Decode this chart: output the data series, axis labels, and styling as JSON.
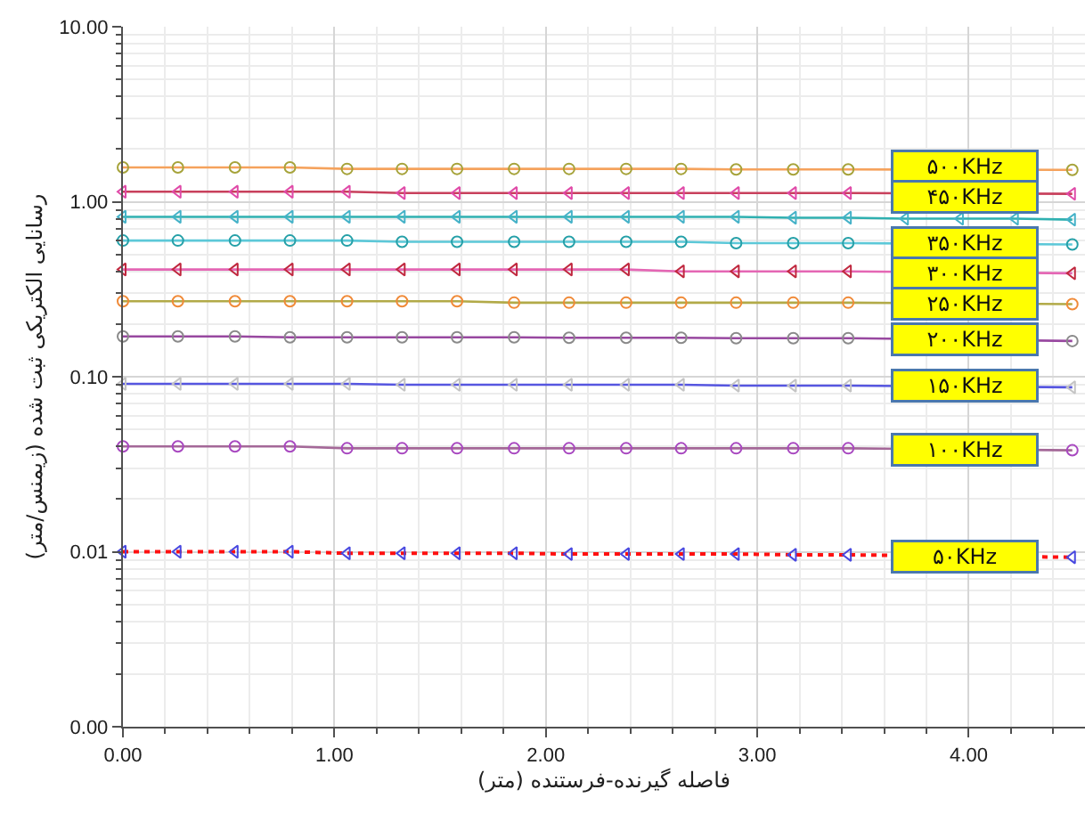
{
  "chart_data": {
    "type": "line",
    "xlabel": "فاصله گیرنده-فرستنده (متر)",
    "ylabel": "رسانایی الکتریکی ثبت شده (زیمنس/متر)",
    "log": true,
    "grid": true,
    "xlim": [
      0,
      4.55
    ],
    "xticks": [
      {
        "value": 0,
        "label": "0.00"
      },
      {
        "value": 1,
        "label": "1.00"
      },
      {
        "value": 2,
        "label": "2.00"
      },
      {
        "value": 3,
        "label": "3.00"
      },
      {
        "value": 4,
        "label": "4.00"
      },
      {
        "value": 0.2,
        "label": null
      },
      {
        "value": 0.4,
        "label": null
      },
      {
        "value": 0.6,
        "label": null
      },
      {
        "value": 0.8,
        "label": null
      },
      {
        "value": 1.2,
        "label": null
      },
      {
        "value": 1.4,
        "label": null
      },
      {
        "value": 1.6,
        "label": null
      },
      {
        "value": 1.8,
        "label": null
      },
      {
        "value": 2.2,
        "label": null
      },
      {
        "value": 2.4,
        "label": null
      },
      {
        "value": 2.6,
        "label": null
      },
      {
        "value": 2.8,
        "label": null
      },
      {
        "value": 3.2,
        "label": null
      },
      {
        "value": 3.4,
        "label": null
      },
      {
        "value": 3.6,
        "label": null
      },
      {
        "value": 3.8,
        "label": null
      },
      {
        "value": 4.2,
        "label": null
      },
      {
        "value": 4.4,
        "label": null
      }
    ],
    "ylim": [
      0.001,
      10
    ],
    "yticks": [
      {
        "value": 0.001,
        "label": "0.00"
      },
      {
        "value": 0.01,
        "label": "0.01"
      },
      {
        "value": 0.1,
        "label": "0.10"
      },
      {
        "value": 1,
        "label": "1.00"
      },
      {
        "value": 10,
        "label": "10.00"
      },
      {
        "value": 0.002,
        "label": null
      },
      {
        "value": 0.003,
        "label": null
      },
      {
        "value": 0.004,
        "label": null
      },
      {
        "value": 0.005,
        "label": null
      },
      {
        "value": 0.006,
        "label": null
      },
      {
        "value": 0.007,
        "label": null
      },
      {
        "value": 0.008,
        "label": null
      },
      {
        "value": 0.009,
        "label": null
      },
      {
        "value": 0.02,
        "label": null
      },
      {
        "value": 0.03,
        "label": null
      },
      {
        "value": 0.04,
        "label": null
      },
      {
        "value": 0.05,
        "label": null
      },
      {
        "value": 0.06,
        "label": null
      },
      {
        "value": 0.07,
        "label": null
      },
      {
        "value": 0.08,
        "label": null
      },
      {
        "value": 0.09,
        "label": null
      },
      {
        "value": 0.2,
        "label": null
      },
      {
        "value": 0.3,
        "label": null
      },
      {
        "value": 0.4,
        "label": null
      },
      {
        "value": 0.5,
        "label": null
      },
      {
        "value": 0.6,
        "label": null
      },
      {
        "value": 0.7,
        "label": null
      },
      {
        "value": 0.8,
        "label": null
      },
      {
        "value": 0.9,
        "label": null
      },
      {
        "value": 2,
        "label": null
      },
      {
        "value": 3,
        "label": null
      },
      {
        "value": 4,
        "label": null
      },
      {
        "value": 5,
        "label": null
      },
      {
        "value": 6,
        "label": null
      },
      {
        "value": 7,
        "label": null
      },
      {
        "value": 8,
        "label": null
      },
      {
        "value": 9,
        "label": null
      }
    ],
    "x": [
      0,
      0.26,
      0.53,
      0.79,
      1.06,
      1.32,
      1.58,
      1.85,
      2.11,
      2.38,
      2.64,
      2.9,
      3.17,
      3.43,
      4.49
    ],
    "series": [
      {
        "name": "۵۰۰KHz",
        "color": "#f5a25c",
        "colors": [
          "#a6a33a",
          "#a6a33a",
          "#a6a33a",
          "#a6a33a",
          "#a6a33a",
          "#a6a33a",
          "#a6a33a",
          "#a6a33a",
          "#a6a33a",
          "#a6a33a",
          "#a6a33a",
          "#a6a33a",
          "#a6a33a",
          "#a6a33a",
          "#a6a33a"
        ],
        "marker": "circle",
        "line_style": "solid",
        "values": [
          1.57,
          1.57,
          1.57,
          1.57,
          1.54,
          1.54,
          1.54,
          1.54,
          1.54,
          1.54,
          1.54,
          1.53,
          1.53,
          1.53,
          1.52
        ]
      },
      {
        "name": "۴۵۰KHz",
        "color": "#c8405c",
        "colors": [
          "#e04aa8",
          "#e04aa8",
          "#e04aa8",
          "#e04aa8",
          "#e04aa8",
          "#e04aa8",
          "#e04aa8",
          "#e04aa8",
          "#e04aa8",
          "#e04aa8",
          "#e04aa8",
          "#e04aa8",
          "#e04aa8",
          "#e04aa8",
          "#e04aa8"
        ],
        "marker": "triangle",
        "line_style": "solid",
        "values": [
          1.14,
          1.14,
          1.14,
          1.14,
          1.14,
          1.12,
          1.12,
          1.12,
          1.12,
          1.12,
          1.12,
          1.12,
          1.12,
          1.12,
          1.11
        ]
      },
      {
        "color": "#2fb0b0",
        "colors": [
          "#45b2c8",
          "#45b2c8",
          "#45b2c8",
          "#45b2c8",
          "#45b2c8",
          "#45b2c8",
          "#45b2c8",
          "#45b2c8",
          "#45b2c8",
          "#45b2c8",
          "#45b2c8",
          "#45b2c8",
          "#45b2c8",
          "#45b2c8",
          "#45b2c8",
          "#45b2c8",
          "#45b2c8",
          "#45b2c8"
        ],
        "marker": "triangle",
        "line_style": "solid",
        "x": [
          0,
          0.26,
          0.53,
          0.79,
          1.06,
          1.32,
          1.58,
          1.85,
          2.11,
          2.38,
          2.64,
          2.9,
          3.17,
          3.43,
          3.7,
          3.96,
          4.22,
          4.49
        ],
        "values": [
          0.82,
          0.82,
          0.82,
          0.82,
          0.82,
          0.82,
          0.82,
          0.82,
          0.82,
          0.82,
          0.82,
          0.82,
          0.81,
          0.81,
          0.8,
          0.8,
          0.8,
          0.79
        ]
      },
      {
        "name": "۳۵۰KHz",
        "color": "#5cc8d8",
        "colors": [
          "#25a0a8",
          "#25a0a8",
          "#25a0a8",
          "#25a0a8",
          "#25a0a8",
          "#25a0a8",
          "#25a0a8",
          "#25a0a8",
          "#25a0a8",
          "#25a0a8",
          "#25a0a8",
          "#25a0a8",
          "#25a0a8",
          "#25a0a8",
          "#25a0a8"
        ],
        "marker": "circle",
        "line_style": "solid",
        "values": [
          0.6,
          0.6,
          0.6,
          0.6,
          0.6,
          0.59,
          0.59,
          0.59,
          0.59,
          0.59,
          0.59,
          0.58,
          0.58,
          0.58,
          0.57
        ]
      },
      {
        "name": "۳۰۰KHz",
        "color": "#e466b4",
        "colors": [
          "#c0283f",
          "#c0283f",
          "#c0283f",
          "#c0283f",
          "#c0283f",
          "#c0283f",
          "#c0283f",
          "#c0283f",
          "#c0283f",
          "#c0283f",
          "#c0283f",
          "#c0283f",
          "#c0283f",
          "#c0283f",
          "#c0283f"
        ],
        "marker": "triangle",
        "line_style": "solid",
        "values": [
          0.41,
          0.41,
          0.41,
          0.41,
          0.41,
          0.41,
          0.41,
          0.41,
          0.41,
          0.41,
          0.4,
          0.4,
          0.4,
          0.4,
          0.39
        ]
      },
      {
        "name": "۲۵۰KHz",
        "color": "#b2aa48",
        "colors": [
          "#f08a38",
          "#f08a38",
          "#f08a38",
          "#f08a38",
          "#f08a38",
          "#f08a38",
          "#f08a38",
          "#f08a38",
          "#f08a38",
          "#f08a38",
          "#f08a38",
          "#f08a38",
          "#f08a38",
          "#f08a38",
          "#f08a38"
        ],
        "marker": "circle",
        "line_style": "solid",
        "values": [
          0.27,
          0.27,
          0.27,
          0.27,
          0.27,
          0.27,
          0.27,
          0.265,
          0.265,
          0.265,
          0.265,
          0.265,
          0.265,
          0.265,
          0.26
        ]
      },
      {
        "name": "۲۰۰KHz",
        "color": "#9848a0",
        "colors": [
          "#8a8a8a",
          "#8a8a8a",
          "#8a8a8a",
          "#8a8a8a",
          "#8a8a8a",
          "#8a8a8a",
          "#8a8a8a",
          "#8a8a8a",
          "#8a8a8a",
          "#8a8a8a",
          "#8a8a8a",
          "#8a8a8a",
          "#8a8a8a",
          "#8a8a8a",
          "#8a8a8a"
        ],
        "marker": "circle",
        "line_style": "solid",
        "values": [
          0.17,
          0.17,
          0.17,
          0.168,
          0.168,
          0.168,
          0.168,
          0.168,
          0.167,
          0.167,
          0.167,
          0.166,
          0.166,
          0.166,
          0.16
        ]
      },
      {
        "name": "۱۵۰KHz",
        "color": "#5656e0",
        "colors": [
          "#c4c4c4",
          "#c4c4c4",
          "#c4c4c4",
          "#c4c4c4",
          "#c4c4c4",
          "#c4c4c4",
          "#c4c4c4",
          "#c4c4c4",
          "#c4c4c4",
          "#c4c4c4",
          "#c4c4c4",
          "#c4c4c4",
          "#c4c4c4",
          "#c4c4c4",
          "#c4c4c4"
        ],
        "marker": "triangle",
        "line_style": "solid",
        "values": [
          0.091,
          0.091,
          0.091,
          0.091,
          0.091,
          0.09,
          0.09,
          0.09,
          0.09,
          0.09,
          0.09,
          0.089,
          0.089,
          0.089,
          0.087
        ]
      },
      {
        "name": "۱۰۰KHz",
        "color": "#a46898",
        "colors": [
          "#a848c0",
          "#a848c0",
          "#a848c0",
          "#a848c0",
          "#a848c0",
          "#a848c0",
          "#a848c0",
          "#a848c0",
          "#a848c0",
          "#a848c0",
          "#a848c0",
          "#a848c0",
          "#a848c0",
          "#a848c0",
          "#a848c0"
        ],
        "marker": "circle",
        "line_style": "solid",
        "values": [
          0.04,
          0.04,
          0.04,
          0.04,
          0.039,
          0.039,
          0.039,
          0.039,
          0.039,
          0.039,
          0.039,
          0.039,
          0.039,
          0.039,
          0.038
        ]
      },
      {
        "name": "۵۰KHz",
        "color": "#ff1010",
        "colors": [
          "#4848e0",
          "#4848e0",
          "#4848e0",
          "#4848e0",
          "#4848e0",
          "#4848e0",
          "#4848e0",
          "#4848e0",
          "#4848e0",
          "#4848e0",
          "#4848e0",
          "#4848e0",
          "#4848e0",
          "#4848e0",
          "#4848e0"
        ],
        "marker": "triangle",
        "line_style": "dotted",
        "values": [
          0.01,
          0.01,
          0.01,
          0.01,
          0.0098,
          0.0098,
          0.0098,
          0.0098,
          0.0097,
          0.0097,
          0.0097,
          0.0097,
          0.0096,
          0.0096,
          0.0093
        ]
      }
    ]
  }
}
